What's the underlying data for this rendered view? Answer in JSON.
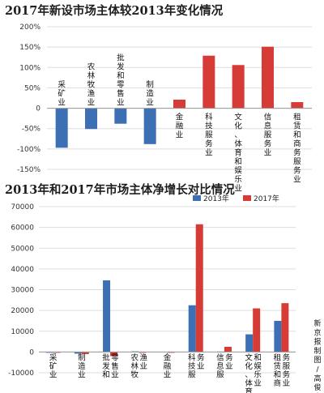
{
  "credit": "新京报制图/高俊夫",
  "chart_data": [
    {
      "type": "bar",
      "title": "2017年新设市场主体较2013年变化情况",
      "categories": [
        "采矿业",
        "农林牧渔业",
        "批发和零售业",
        "制造业",
        "金融业",
        "科技服务业",
        "文化、体育和娱乐业",
        "信息服务业",
        "租赁和商务服务业"
      ],
      "values": [
        -97,
        -51,
        -38,
        -88,
        21,
        129,
        106,
        151,
        15
      ],
      "unit": "%",
      "ylim": [
        -150,
        200
      ],
      "yticks": [
        "200%",
        "150%",
        "100%",
        "50%",
        "0",
        "-50%",
        "-100%",
        "-150%"
      ],
      "colors": {
        "negative": "#3d6fb5",
        "positive": "#d63b35"
      },
      "grid": true
    },
    {
      "type": "bar",
      "title": "2013年和2017年市场主体净增长对比情况",
      "categories": [
        "采矿业",
        "制造业",
        "批发和零售业",
        "农林牧渔业",
        "金融业",
        "科技服务业",
        "信息服务业",
        "文化、体育和娱乐业",
        "租赁和商务服务业"
      ],
      "series": [
        {
          "name": "2013年",
          "color": "#3d6fb5",
          "values": [
            -200,
            -800,
            34500,
            300,
            0,
            22500,
            200,
            8500,
            15000
          ]
        },
        {
          "name": "2017年",
          "color": "#d63b35",
          "values": [
            -100,
            -1000,
            -2000,
            -200,
            -200,
            61500,
            2500,
            21000,
            23500
          ]
        }
      ],
      "ylim": [
        -10000,
        70000
      ],
      "yticks": [
        "70000",
        "60000",
        "50000",
        "40000",
        "30000",
        "20000",
        "10000",
        "0",
        "-10000"
      ],
      "legend": "top-right",
      "grid": true
    }
  ]
}
